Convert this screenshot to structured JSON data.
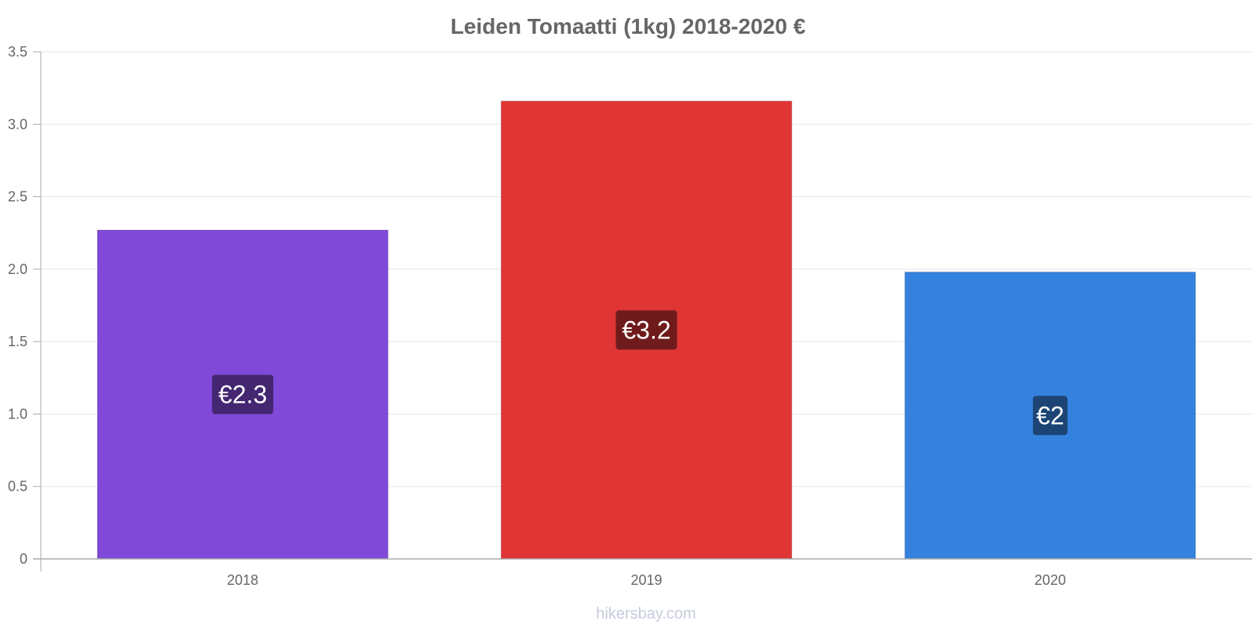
{
  "chart_data": {
    "type": "bar",
    "title": "Leiden Tomaatti (1kg) 2018-2020 €",
    "xlabel": "",
    "ylabel": "",
    "categories": [
      "2018",
      "2019",
      "2020"
    ],
    "values": [
      2.27,
      3.16,
      1.98
    ],
    "data_labels": [
      "€2.3",
      "€3.2",
      "€2"
    ],
    "colors": [
      "#8049d8",
      "#e03535",
      "#3582de"
    ],
    "label_bg_colors": [
      "#442671",
      "#6f1b1b",
      "#1c4575"
    ],
    "ylim": [
      0,
      3.5
    ],
    "yticks": [
      0,
      0.5,
      1.0,
      1.5,
      2.0,
      2.5,
      3.0,
      3.5
    ],
    "ytick_labels": [
      "0",
      "0.5",
      "1.0",
      "1.5",
      "2.0",
      "2.5",
      "3.0",
      "3.5"
    ],
    "grid": true,
    "legend": "none"
  },
  "watermark": "hikersbay.com"
}
